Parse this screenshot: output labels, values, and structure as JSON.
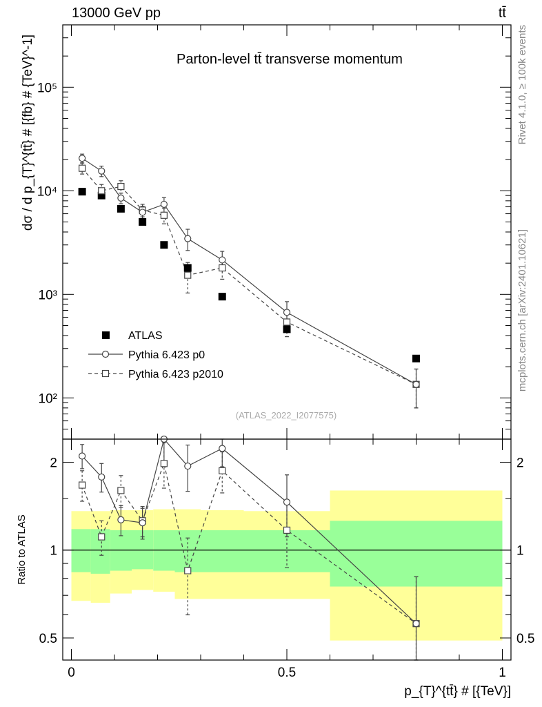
{
  "header": {
    "left": "13000 GeV pp",
    "right": "tt̄"
  },
  "side_labels": {
    "rivet": "Rivet 4.1.0, ≥ 100k events",
    "mcplots": "mcplots.cern.ch [arXiv:2401.10621]"
  },
  "chart_data": [
    {
      "type": "scatter",
      "panel": "main",
      "title": "Parton-level tt̄ transverse momentum",
      "ylabel": "dσ / d p_{T}^{tt̄} # [{fb} # {TeV}^-1]",
      "yscale": "log",
      "ylim": [
        40,
        400000
      ],
      "xlim": [
        -0.02,
        1.02
      ],
      "ytick_labels": [
        "10²",
        "10³",
        "10⁴",
        "10⁵"
      ],
      "watermark": "(ATLAS_2022_I2077575)",
      "legend_position": "center-left",
      "x": [
        0.025,
        0.07,
        0.115,
        0.165,
        0.215,
        0.27,
        0.35,
        0.5,
        0.8
      ],
      "series": [
        {
          "name": "ATLAS",
          "style": "filled-square",
          "values": [
            9800,
            9000,
            6700,
            5000,
            3000,
            1800,
            950,
            460,
            240
          ]
        },
        {
          "name": "Pythia 6.423 p0",
          "style": "solid-circle",
          "values": [
            20600,
            15500,
            8500,
            6200,
            7400,
            3450,
            2150,
            670,
            135
          ],
          "errors": [
            2000,
            1800,
            1000,
            900,
            1200,
            800,
            450,
            180,
            55
          ]
        },
        {
          "name": "Pythia 6.423 p2010",
          "style": "dashed-square",
          "values": [
            16500,
            10000,
            11000,
            6500,
            5800,
            1530,
            1800,
            540,
            135
          ],
          "errors": [
            2000,
            1500,
            1500,
            900,
            1000,
            500,
            400,
            150,
            55
          ]
        }
      ]
    },
    {
      "type": "scatter",
      "panel": "ratio",
      "ylabel": "Ratio to ATLAS",
      "xlabel": "p_{T}^{tt̄} # [{TeV}]",
      "yscale": "log",
      "ylim": [
        0.42,
        2.4
      ],
      "xlim": [
        -0.02,
        1.02
      ],
      "ytick_labels": [
        "0.5",
        "1",
        "2"
      ],
      "xtick_labels": [
        "0",
        "0.5",
        "1"
      ],
      "x": [
        0.025,
        0.07,
        0.115,
        0.165,
        0.215,
        0.27,
        0.35,
        0.5,
        0.8
      ],
      "series": [
        {
          "name": "Pythia 6.423 p0",
          "values": [
            2.1,
            1.78,
            1.27,
            1.24,
            2.45,
            1.94,
            2.23,
            1.46,
            0.56
          ],
          "errors": [
            0.2,
            0.2,
            0.15,
            0.15,
            0.45,
            0.35,
            0.3,
            0.35,
            0.25
          ]
        },
        {
          "name": "Pythia 6.423 p2010",
          "values": [
            1.67,
            1.11,
            1.6,
            1.26,
            1.98,
            0.85,
            1.87,
            1.17,
            0.56
          ],
          "errors": [
            0.2,
            0.15,
            0.2,
            0.15,
            0.35,
            0.25,
            0.3,
            0.3,
            0.25
          ]
        }
      ],
      "bands": {
        "bins": [
          0.0,
          0.045,
          0.09,
          0.14,
          0.19,
          0.24,
          0.3,
          0.4,
          0.6,
          1.0
        ],
        "inner_lo": [
          0.84,
          0.83,
          0.85,
          0.86,
          0.85,
          0.84,
          0.84,
          0.84,
          0.75
        ],
        "inner_hi": [
          1.18,
          1.18,
          1.17,
          1.17,
          1.17,
          1.17,
          1.17,
          1.17,
          1.26
        ],
        "outer_lo": [
          0.67,
          0.66,
          0.71,
          0.73,
          0.72,
          0.68,
          0.68,
          0.68,
          0.49
        ],
        "outer_hi": [
          1.36,
          1.36,
          1.37,
          1.37,
          1.38,
          1.38,
          1.37,
          1.36,
          1.6
        ]
      }
    }
  ]
}
